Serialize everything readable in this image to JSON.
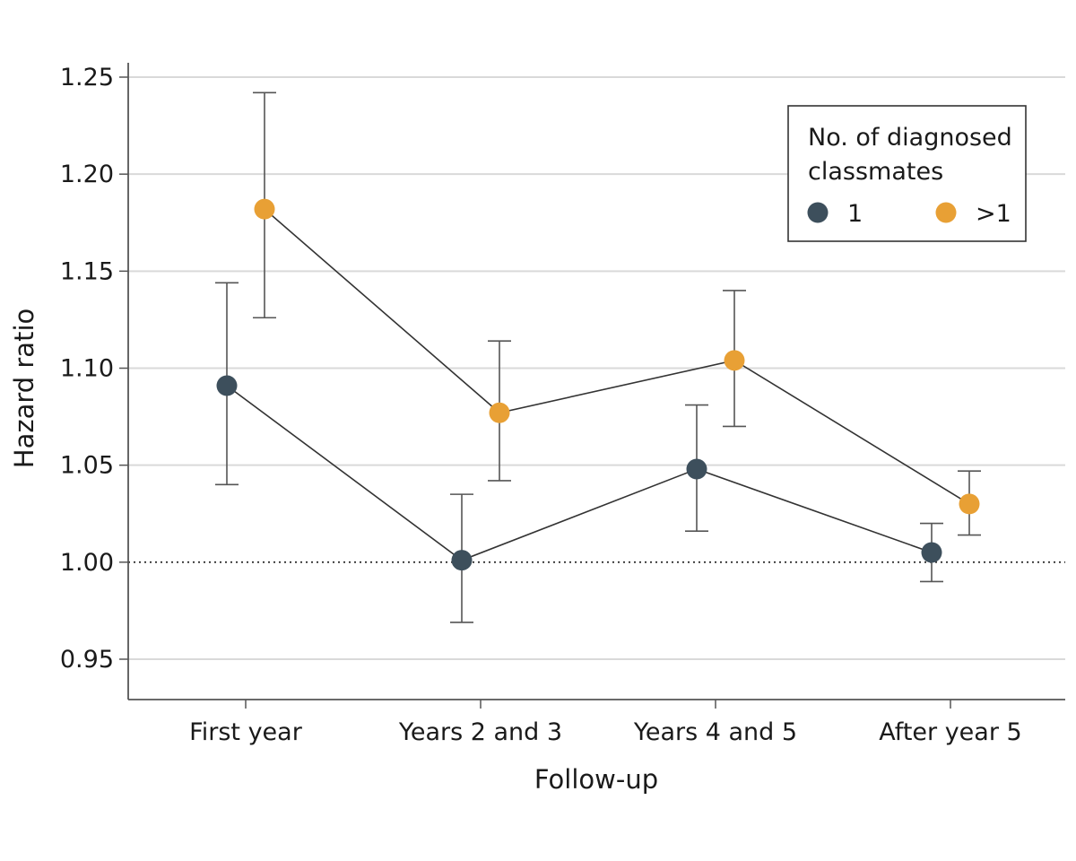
{
  "chart_data": {
    "type": "scatter",
    "title": "",
    "xlabel": "Follow-up",
    "ylabel": "Hazard ratio",
    "categories": [
      "First year",
      "Years 2 and 3",
      "Years 4 and 5",
      "After year 5"
    ],
    "ylim": [
      0.93,
      1.25
    ],
    "yticks": [
      "0.95",
      "1.00",
      "1.05",
      "1.10",
      "1.15",
      "1.20",
      "1.25"
    ],
    "reference_line": 1.0,
    "grid": true,
    "legend": {
      "title": "No. of diagnosed classmates",
      "title_lines": [
        "No. of diagnosed",
        "classmates"
      ],
      "placement": "top-right"
    },
    "series": [
      {
        "name": "1",
        "color": "#3d4f5c",
        "values": [
          1.091,
          1.001,
          1.048,
          1.005
        ],
        "ci_low": [
          1.04,
          0.969,
          1.016,
          0.99
        ],
        "ci_high": [
          1.144,
          1.035,
          1.081,
          1.02
        ]
      },
      {
        "name": ">1",
        "color": "#e8a035",
        "values": [
          1.182,
          1.077,
          1.104,
          1.03
        ],
        "ci_low": [
          1.126,
          1.042,
          1.07,
          1.014
        ],
        "ci_high": [
          1.242,
          1.114,
          1.14,
          1.047
        ]
      }
    ]
  }
}
